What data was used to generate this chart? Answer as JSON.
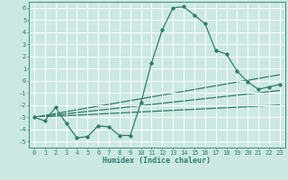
{
  "xlabel": "Humidex (Indice chaleur)",
  "background_color": "#cce8e2",
  "grid_color": "#b0d8d2",
  "line_color": "#2e7d6e",
  "marker": "D",
  "markersize": 1.8,
  "linewidth": 0.9,
  "xlim": [
    -0.5,
    23.5
  ],
  "ylim": [
    -5.5,
    6.5
  ],
  "yticks": [
    -5,
    -4,
    -3,
    -2,
    -1,
    0,
    1,
    2,
    3,
    4,
    5,
    6
  ],
  "xticks": [
    0,
    1,
    2,
    3,
    4,
    5,
    6,
    7,
    8,
    9,
    10,
    11,
    12,
    13,
    14,
    15,
    16,
    17,
    18,
    19,
    20,
    21,
    22,
    23
  ],
  "main_x": [
    0,
    1,
    2,
    3,
    4,
    5,
    6,
    7,
    8,
    9,
    10,
    11,
    12,
    13,
    14,
    15,
    16,
    17,
    18,
    19,
    20,
    21,
    22,
    23
  ],
  "main_y": [
    -3.0,
    -3.3,
    -2.2,
    -3.5,
    -4.7,
    -4.6,
    -3.7,
    -3.8,
    -4.5,
    -4.5,
    -1.8,
    1.5,
    4.2,
    6.0,
    6.1,
    5.4,
    4.7,
    2.5,
    2.2,
    0.8,
    -0.1,
    -0.7,
    -0.5,
    -0.3
  ],
  "ref_lines": [
    {
      "x0": 0,
      "y0": -3.0,
      "x1": 23,
      "y1": 0.5
    },
    {
      "x0": 0,
      "y0": -3.0,
      "x1": 23,
      "y1": -0.8
    },
    {
      "x0": 0,
      "y0": -3.0,
      "x1": 23,
      "y1": -2.0
    }
  ],
  "tick_fontsize": 5.0,
  "xlabel_fontsize": 6.0
}
